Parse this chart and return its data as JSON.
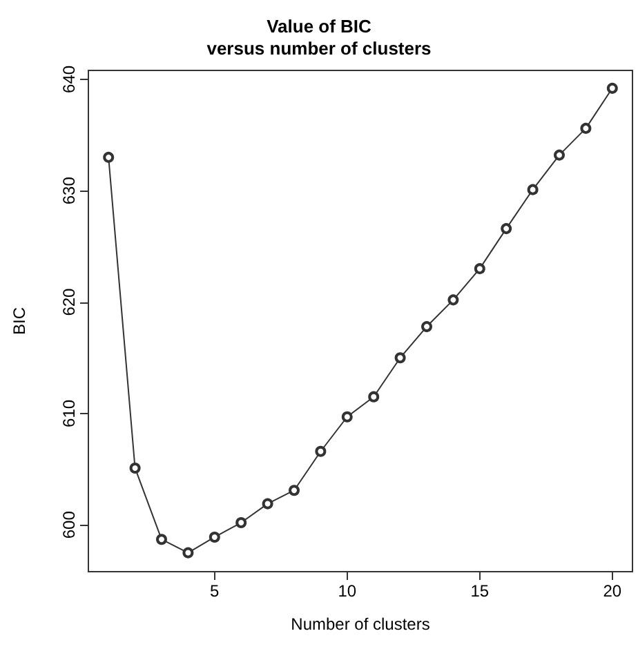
{
  "chart_data": {
    "type": "line",
    "title": "Value of BIC\nversus number of clusters",
    "xlabel": "Number of clusters",
    "ylabel": "BIC",
    "x": [
      1,
      2,
      3,
      4,
      5,
      6,
      7,
      8,
      9,
      10,
      11,
      12,
      13,
      14,
      15,
      16,
      17,
      18,
      19,
      20
    ],
    "series": [
      {
        "color": "#333333",
        "values": [
          633.0,
          605.1,
          598.7,
          597.5,
          598.9,
          600.2,
          601.9,
          603.1,
          606.6,
          609.7,
          611.5,
          615.0,
          617.8,
          620.2,
          623.0,
          626.6,
          630.1,
          633.2,
          635.6,
          639.2
        ]
      }
    ],
    "xlim": [
      0.24,
      20.76
    ],
    "xticks": [
      5,
      10,
      15,
      20
    ],
    "ylim": [
      595.8,
      640.8
    ],
    "yticks": [
      600,
      610,
      620,
      630,
      640
    ],
    "grid": false,
    "marker": "circle",
    "line_style": "solid"
  }
}
